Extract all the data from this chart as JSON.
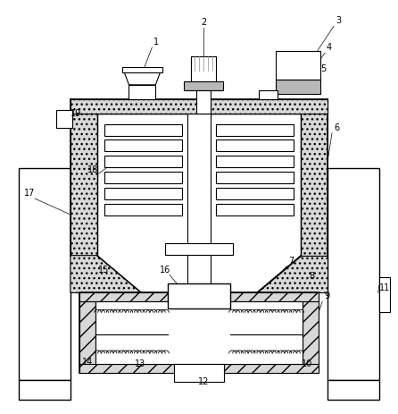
{
  "background_color": "#ffffff",
  "line_color": "#000000",
  "figsize": [
    4.46,
    4.63
  ],
  "dpi": 100,
  "insulation_fc": "#d8d8d8",
  "gray_fc": "#b8b8b8",
  "white_fc": "#ffffff"
}
